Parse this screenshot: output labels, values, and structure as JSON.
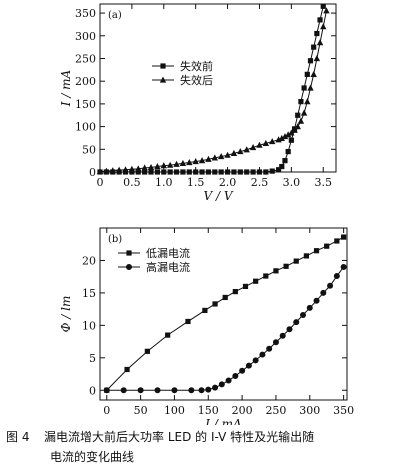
{
  "chart_data": [
    {
      "type": "line",
      "panel_label": "(a)",
      "xlabel": "V / V",
      "ylabel": "I / mA",
      "xlim": [
        0,
        3.7
      ],
      "ylim": [
        0,
        370
      ],
      "x_ticks": [
        0,
        0.5,
        1.0,
        1.5,
        2.0,
        2.5,
        3.0,
        3.5
      ],
      "x_tick_labels": [
        "0",
        "0.5",
        "1.0",
        "1.5",
        "2.0",
        "2.5",
        "3.0",
        "3.5"
      ],
      "y_ticks": [
        0,
        50,
        100,
        150,
        200,
        250,
        300,
        350
      ],
      "y_tick_labels": [
        "0",
        "50",
        "100",
        "150",
        "200",
        "250",
        "300",
        "350"
      ],
      "legend_position": "center-left",
      "grid": false,
      "series": [
        {
          "name": "失效前",
          "marker": "square",
          "x": [
            0.0,
            0.1,
            0.2,
            0.3,
            0.4,
            0.5,
            0.6,
            0.7,
            0.8,
            0.9,
            1.0,
            1.1,
            1.2,
            1.3,
            1.4,
            1.5,
            1.6,
            1.7,
            1.8,
            1.9,
            2.0,
            2.1,
            2.2,
            2.3,
            2.4,
            2.5,
            2.6,
            2.7,
            2.8,
            2.85,
            2.9,
            2.95,
            3.0,
            3.05,
            3.1,
            3.15,
            3.2,
            3.25,
            3.3,
            3.35,
            3.4,
            3.45,
            3.5
          ],
          "y": [
            0,
            0,
            0,
            0,
            0,
            0,
            0,
            0,
            0,
            0,
            0,
            0,
            0,
            0,
            0,
            0,
            0,
            0,
            0,
            0,
            0,
            0,
            0,
            0,
            0,
            0,
            0,
            2,
            5,
            12,
            25,
            45,
            70,
            95,
            125,
            155,
            185,
            215,
            245,
            275,
            305,
            335,
            365
          ]
        },
        {
          "name": "失效后",
          "marker": "triangle",
          "x": [
            0.0,
            0.1,
            0.2,
            0.3,
            0.4,
            0.5,
            0.6,
            0.7,
            0.8,
            0.9,
            1.0,
            1.1,
            1.2,
            1.3,
            1.4,
            1.5,
            1.6,
            1.7,
            1.8,
            1.9,
            2.0,
            2.1,
            2.2,
            2.3,
            2.4,
            2.5,
            2.6,
            2.7,
            2.8,
            2.85,
            2.9,
            2.95,
            3.0,
            3.05,
            3.1,
            3.15,
            3.2,
            3.25,
            3.3,
            3.35,
            3.4,
            3.45,
            3.5,
            3.55
          ],
          "y": [
            1,
            2,
            3,
            4,
            5,
            6,
            7,
            9,
            10,
            12,
            14,
            15,
            17,
            19,
            21,
            23,
            25,
            28,
            31,
            34,
            37,
            41,
            45,
            49,
            54,
            59,
            63,
            67,
            71,
            74,
            78,
            82,
            86,
            92,
            100,
            112,
            130,
            155,
            185,
            215,
            250,
            285,
            320,
            355
          ]
        }
      ]
    },
    {
      "type": "line",
      "panel_label": "(b)",
      "xlabel": "I / mA",
      "ylabel": "Φ / lm",
      "xlim": [
        -10,
        355
      ],
      "ylim": [
        -1.5,
        25
      ],
      "x_ticks": [
        0,
        50,
        100,
        150,
        200,
        250,
        300,
        350
      ],
      "x_tick_labels": [
        "0",
        "50",
        "100",
        "150",
        "200",
        "250",
        "300",
        "350"
      ],
      "y_ticks": [
        0,
        5,
        10,
        15,
        20
      ],
      "y_tick_labels": [
        "0",
        "5",
        "10",
        "15",
        "20"
      ],
      "legend_position": "top-left",
      "grid": false,
      "series": [
        {
          "name": "低漏电流",
          "marker": "square",
          "x": [
            0,
            30,
            60,
            90,
            120,
            145,
            160,
            175,
            190,
            205,
            220,
            235,
            250,
            265,
            280,
            295,
            310,
            325,
            340,
            350
          ],
          "y": [
            0,
            3.2,
            6.0,
            8.5,
            10.6,
            12.3,
            13.3,
            14.3,
            15.2,
            16.0,
            16.8,
            17.6,
            18.4,
            19.1,
            19.9,
            20.7,
            21.5,
            22.2,
            23.0,
            23.6
          ]
        },
        {
          "name": "高漏电流",
          "marker": "circle",
          "x": [
            0,
            25,
            50,
            75,
            100,
            125,
            140,
            150,
            160,
            170,
            180,
            190,
            200,
            210,
            220,
            230,
            240,
            250,
            260,
            270,
            280,
            290,
            300,
            310,
            320,
            330,
            340,
            350
          ],
          "y": [
            0,
            0,
            0,
            0,
            0,
            0,
            0,
            0.1,
            0.4,
            0.9,
            1.5,
            2.2,
            3.0,
            3.8,
            4.6,
            5.5,
            6.4,
            7.4,
            8.4,
            9.4,
            10.5,
            11.6,
            12.7,
            13.8,
            15.0,
            16.1,
            17.6,
            19.0
          ]
        }
      ]
    }
  ],
  "caption": {
    "number": "图 4",
    "line1": "漏电流增大前后大功率 LED 的 I-V 特性及光输出随",
    "line2": "电流的变化曲线"
  }
}
